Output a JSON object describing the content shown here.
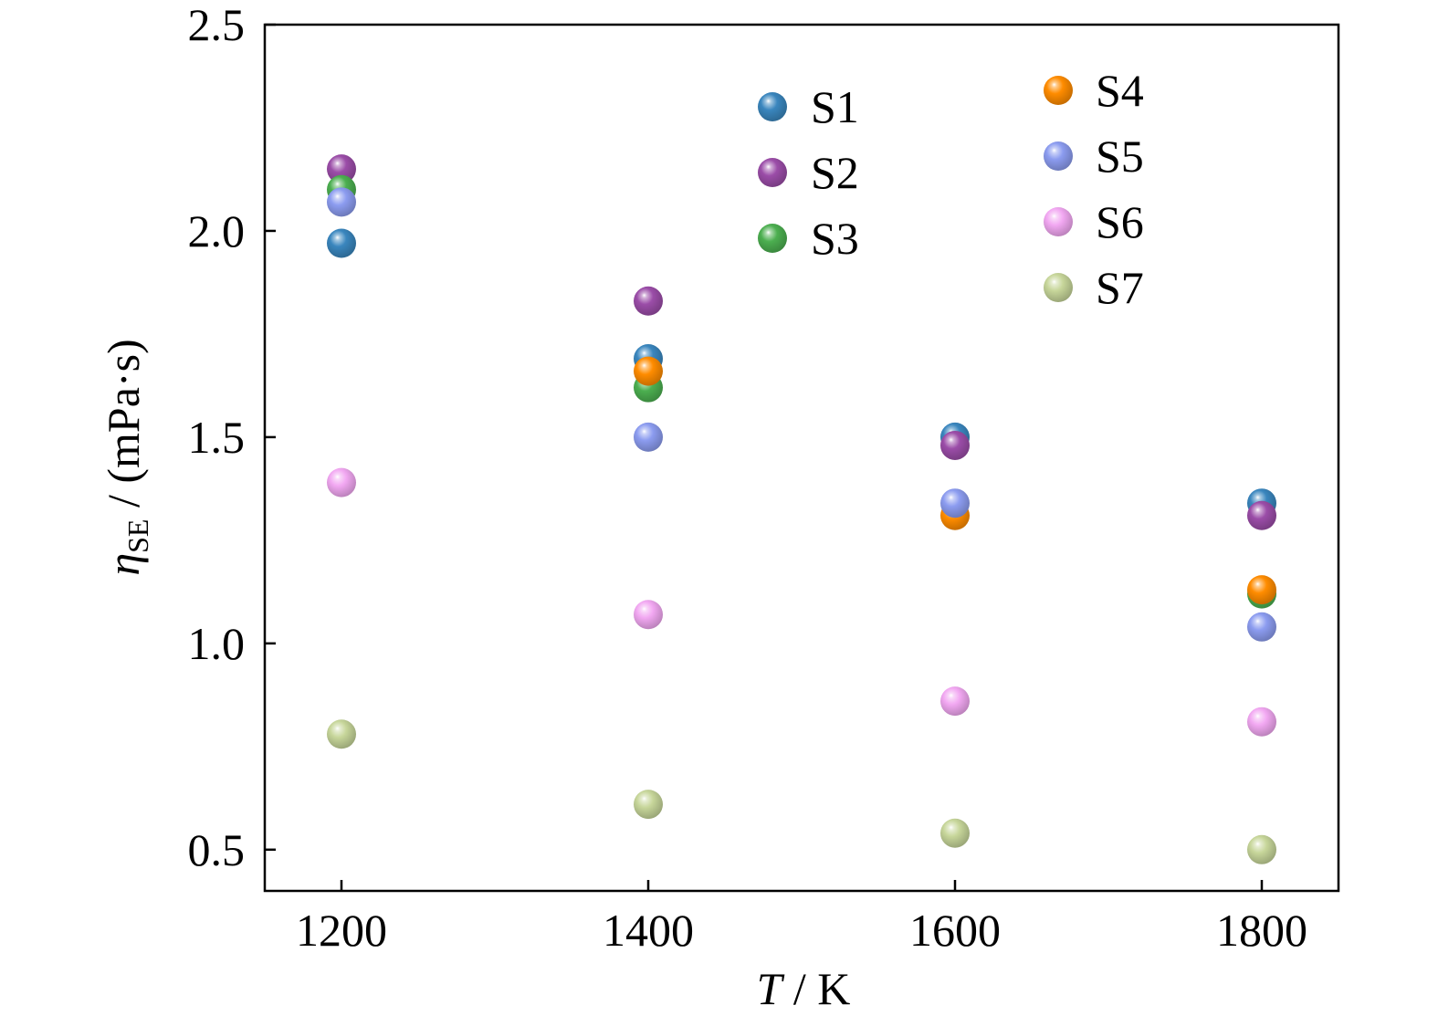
{
  "chart_data": {
    "type": "scatter",
    "xlabel": {
      "symbol": "T",
      "unit": " / K"
    },
    "ylabel": {
      "symbol": "η",
      "subscript": "SE",
      "unit": " / (mPa·s)"
    },
    "xlim": [
      1150,
      1850
    ],
    "ylim": [
      0.4,
      2.5
    ],
    "x_ticks": [
      1200,
      1400,
      1600,
      1800
    ],
    "x_tick_labels": [
      "1200",
      "1400",
      "1600",
      "1800"
    ],
    "y_ticks": [
      0.5,
      1.0,
      1.5,
      2.0,
      2.5
    ],
    "y_tick_labels": [
      "0.5",
      "1.0",
      "1.5",
      "2.0",
      "2.5"
    ],
    "legend_position": "top-right, two columns",
    "x": [
      1200,
      1400,
      1600,
      1800
    ],
    "series": [
      {
        "name": "S1",
        "color": "#3a86be",
        "values": [
          1.97,
          1.69,
          1.5,
          1.34
        ]
      },
      {
        "name": "S2",
        "color": "#9b4da8",
        "values": [
          2.15,
          1.83,
          1.48,
          1.31
        ]
      },
      {
        "name": "S3",
        "color": "#4caf50",
        "values": [
          2.1,
          1.62,
          null,
          1.12
        ]
      },
      {
        "name": "S4",
        "color": "#ff8c00",
        "values": [
          null,
          1.66,
          1.31,
          1.13
        ]
      },
      {
        "name": "S5",
        "color": "#8c9cf0",
        "values": [
          2.07,
          1.5,
          1.34,
          1.04
        ]
      },
      {
        "name": "S6",
        "color": "#f2a8f2",
        "values": [
          1.39,
          1.07,
          0.86,
          0.81
        ]
      },
      {
        "name": "S7",
        "color": "#c7d69a",
        "values": [
          0.78,
          0.61,
          0.54,
          0.5
        ]
      }
    ]
  }
}
